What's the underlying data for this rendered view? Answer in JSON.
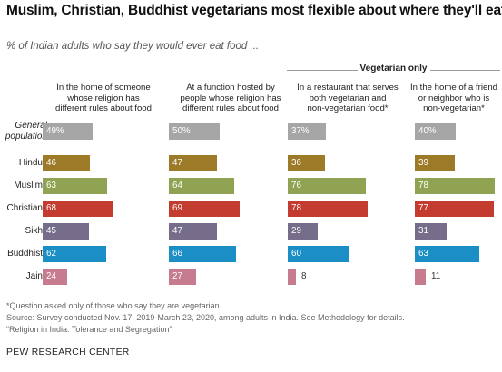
{
  "title": "Muslim, Christian, Buddhist vegetarians most flexible about where they'll eat",
  "subtitle": "% of Indian adults who say they would ever eat food ...",
  "group_label": "Vegetarian only",
  "colors": {
    "General population": "#a6a6a6",
    "Hindus": "#9c7a27",
    "Muslims": "#8fa353",
    "Christians": "#c43b2f",
    "Sikhs": "#766d8b",
    "Buddhists": "#1b8fc5",
    "Jains": "#c67b8f"
  },
  "chart_data": {
    "type": "bar",
    "title": "Muslim, Christian, Buddhist vegetarians most flexible about where they'll eat",
    "subtitle": "% of Indian adults who say they would ever eat food ...",
    "categories": [
      "General population",
      "Hindus",
      "Muslims",
      "Christians",
      "Sikhs",
      "Buddhists",
      "Jains"
    ],
    "category_labels": [
      "General\npopulation",
      "Hindus",
      "Muslims",
      "Christians",
      "Sikhs",
      "Buddhists",
      "Jains"
    ],
    "series": [
      {
        "name": "In the home of someone whose religion has different rules about food",
        "values": [
          49,
          46,
          63,
          68,
          45,
          62,
          24
        ],
        "labels": [
          "49%",
          "46",
          "63",
          "68",
          "45",
          "62",
          "24"
        ]
      },
      {
        "name": "At a function hosted by people whose religion has different rules about food",
        "values": [
          50,
          47,
          64,
          69,
          47,
          66,
          27
        ],
        "labels": [
          "50%",
          "47",
          "64",
          "69",
          "47",
          "66",
          "27"
        ]
      },
      {
        "name": "In a restaurant that serves both vegetarian and non-vegetarian food*",
        "values": [
          37,
          36,
          76,
          78,
          29,
          60,
          8
        ],
        "labels": [
          "37%",
          "36",
          "76",
          "78",
          "29",
          "60",
          "8"
        ]
      },
      {
        "name": "In the home of a friend or neighbor who is non-vegetarian*",
        "values": [
          40,
          39,
          78,
          77,
          31,
          63,
          11
        ],
        "labels": [
          "40%",
          "39",
          "78",
          "77",
          "31",
          "63",
          "11"
        ]
      }
    ],
    "column_headers": [
      "In the home of someone\nwhose religion has\ndifferent rules about food",
      "At a function hosted by\npeople whose religion has\ndifferent rules about food",
      "In a restaurant that serves\nboth vegetarian and\nnon-vegetarian food*",
      "In the home of a friend\nor neighbor who is\nnon-vegetarian*"
    ],
    "xlim": [
      0,
      100
    ]
  },
  "footnotes": [
    "*Question asked only of those who say they are vegetarian.",
    "Source: Survey conducted Nov. 17, 2019-March 23, 2020, among adults in India. See Methodology for details.",
    "“Religion in India: Tolerance and Segregation”"
  ],
  "brand": "PEW RESEARCH CENTER"
}
